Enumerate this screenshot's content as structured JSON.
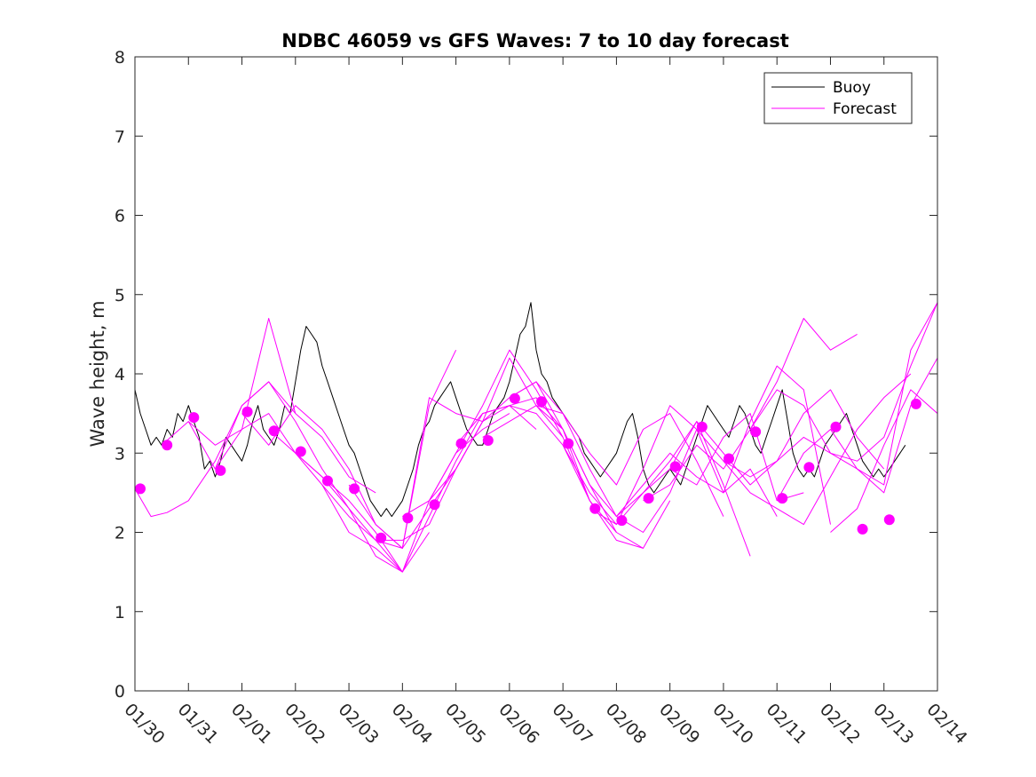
{
  "chart_data": {
    "type": "line",
    "title": "NDBC 46059 vs GFS Waves: 7 to 10 day forecast",
    "xlabel": "",
    "ylabel": "Wave height, m",
    "xlim": [
      0,
      15
    ],
    "ylim": [
      0,
      8
    ],
    "x_unit": "days since 01/30",
    "x_ticks": [
      0,
      1,
      2,
      3,
      4,
      5,
      6,
      7,
      8,
      9,
      10,
      11,
      12,
      13,
      14,
      15
    ],
    "x_tick_labels": [
      "01/30",
      "01/31",
      "02/01",
      "02/02",
      "02/03",
      "02/04",
      "02/05",
      "02/06",
      "02/07",
      "02/08",
      "02/09",
      "02/10",
      "02/11",
      "02/12",
      "02/13",
      "02/14"
    ],
    "y_ticks": [
      0,
      1,
      2,
      3,
      4,
      5,
      6,
      7,
      8
    ],
    "y_tick_labels": [
      "0",
      "1",
      "2",
      "3",
      "4",
      "5",
      "6",
      "7",
      "8"
    ],
    "legend": {
      "position": "top-right",
      "entries": [
        {
          "name": "Buoy",
          "color": "#000000"
        },
        {
          "name": "Forecast",
          "color": "#ff00ff"
        }
      ]
    },
    "series": [
      {
        "name": "Buoy",
        "color": "#000000",
        "x": [
          0,
          0.1,
          0.2,
          0.3,
          0.4,
          0.5,
          0.6,
          0.7,
          0.8,
          0.9,
          1,
          1.1,
          1.2,
          1.3,
          1.4,
          1.5,
          1.6,
          1.7,
          1.8,
          1.9,
          2,
          2.1,
          2.2,
          2.3,
          2.4,
          2.5,
          2.6,
          2.7,
          2.8,
          2.9,
          3,
          3.1,
          3.2,
          3.3,
          3.4,
          3.5,
          3.6,
          3.7,
          3.8,
          3.9,
          4,
          4.1,
          4.2,
          4.3,
          4.4,
          4.5,
          4.6,
          4.7,
          4.8,
          4.9,
          5,
          5.1,
          5.2,
          5.3,
          5.4,
          5.5,
          5.6,
          5.7,
          5.8,
          5.9,
          6,
          6.1,
          6.2,
          6.3,
          6.4,
          6.5,
          6.6,
          6.7,
          6.8,
          6.9,
          7,
          7.1,
          7.2,
          7.3,
          7.4,
          7.5,
          7.6,
          7.7,
          7.8,
          7.9,
          8,
          8.1,
          8.2,
          8.3,
          8.4,
          8.5,
          8.6,
          8.7,
          8.8,
          8.9,
          9,
          9.1,
          9.2,
          9.3,
          9.4,
          9.5,
          9.6,
          9.7,
          9.8,
          9.9,
          10,
          10.1,
          10.2,
          10.3,
          10.4,
          10.5,
          10.6,
          10.7,
          10.8,
          10.9,
          11,
          11.1,
          11.2,
          11.3,
          11.4,
          11.5,
          11.6,
          11.7,
          11.8,
          11.9,
          12,
          12.1,
          12.2,
          12.3,
          12.4,
          12.5,
          12.6,
          12.7,
          12.8,
          12.9,
          13,
          13.1,
          13.2,
          13.3,
          13.4,
          13.5,
          13.6,
          13.7,
          13.8,
          13.9,
          14,
          14.1,
          14.2,
          14.3,
          14.4
        ],
        "values": [
          3.8,
          3.5,
          3.3,
          3.1,
          3.2,
          3.1,
          3.3,
          3.2,
          3.5,
          3.4,
          3.6,
          3.4,
          3.2,
          2.8,
          2.9,
          2.7,
          2.9,
          3.2,
          3.1,
          3.0,
          2.9,
          3.1,
          3.4,
          3.6,
          3.3,
          3.2,
          3.1,
          3.3,
          3.6,
          3.5,
          3.9,
          4.3,
          4.6,
          4.5,
          4.4,
          4.1,
          3.9,
          3.7,
          3.5,
          3.3,
          3.1,
          3.0,
          2.8,
          2.6,
          2.4,
          2.3,
          2.2,
          2.3,
          2.2,
          2.3,
          2.4,
          2.6,
          2.8,
          3.1,
          3.3,
          3.4,
          3.6,
          3.7,
          3.8,
          3.9,
          3.7,
          3.5,
          3.3,
          3.2,
          3.1,
          3.1,
          3.3,
          3.5,
          3.6,
          3.7,
          3.9,
          4.2,
          4.5,
          4.6,
          4.9,
          4.3,
          4.0,
          3.9,
          3.7,
          3.6,
          3.5,
          3.4,
          3.3,
          3.2,
          3.0,
          2.9,
          2.8,
          2.7,
          2.8,
          2.9,
          3.0,
          3.2,
          3.4,
          3.5,
          3.2,
          2.8,
          2.6,
          2.5,
          2.6,
          2.7,
          2.8,
          2.7,
          2.6,
          2.8,
          3.0,
          3.2,
          3.4,
          3.6,
          3.5,
          3.4,
          3.3,
          3.2,
          3.4,
          3.6,
          3.5,
          3.3,
          3.1,
          3.0,
          3.2,
          3.4,
          3.6,
          3.8,
          3.4,
          3.0,
          2.8,
          2.7,
          2.8,
          2.7,
          2.9,
          3.1,
          3.2,
          3.3,
          3.4,
          3.5,
          3.3,
          3.1,
          2.9,
          2.8,
          2.7,
          2.8,
          2.7,
          2.8,
          2.9,
          3.0,
          3.1
        ]
      },
      {
        "name": "Forecast run 1",
        "color": "#ff00ff",
        "x": [
          0,
          0.3,
          0.6,
          1.0,
          1.5,
          2.0,
          2.5,
          3.0
        ],
        "values": [
          2.55,
          2.2,
          2.25,
          2.4,
          2.9,
          3.6,
          3.9,
          3.5
        ]
      },
      {
        "name": "Forecast run 2",
        "color": "#ff00ff",
        "x": [
          0.5,
          1.0,
          1.5,
          2.0,
          2.5,
          3.0,
          3.5,
          4.0,
          4.5
        ],
        "values": [
          3.1,
          3.4,
          3.1,
          3.3,
          4.7,
          3.5,
          3.2,
          2.7,
          2.5
        ]
      },
      {
        "name": "Forecast run 3",
        "color": "#ff00ff",
        "x": [
          1.0,
          1.5,
          2.0,
          2.5,
          3.0,
          3.5,
          4.0,
          4.5,
          5.0
        ],
        "values": [
          3.4,
          2.8,
          3.3,
          3.5,
          3.0,
          2.6,
          2.0,
          1.8,
          1.5
        ]
      },
      {
        "name": "Forecast run 4",
        "color": "#ff00ff",
        "x": [
          1.5,
          2.0,
          2.5,
          3.0,
          3.5,
          4.0,
          4.5,
          5.0,
          5.5
        ],
        "values": [
          2.8,
          3.6,
          3.9,
          3.4,
          2.8,
          2.3,
          1.7,
          1.5,
          2.0
        ]
      },
      {
        "name": "Forecast run 5",
        "color": "#ff00ff",
        "x": [
          2.0,
          2.5,
          3.0,
          3.5,
          4.0,
          4.5,
          5.0,
          5.5,
          6.0
        ],
        "values": [
          3.5,
          3.1,
          3.6,
          3.3,
          2.8,
          2.1,
          1.8,
          3.6,
          4.3
        ]
      },
      {
        "name": "Forecast run 6",
        "color": "#ff00ff",
        "x": [
          2.5,
          3.0,
          3.5,
          4.0,
          4.5,
          5.0,
          5.5,
          6.0,
          6.5
        ],
        "values": [
          3.3,
          3.0,
          2.7,
          2.3,
          1.9,
          1.8,
          3.7,
          3.5,
          3.4
        ]
      },
      {
        "name": "Forecast run 7",
        "color": "#ff00ff",
        "x": [
          3.0,
          3.5,
          4.0,
          4.5,
          5.0,
          5.5,
          6.0,
          6.5,
          7.0
        ],
        "values": [
          3.0,
          2.7,
          2.4,
          2.0,
          1.5,
          2.4,
          3.0,
          3.3,
          3.5
        ]
      },
      {
        "name": "Forecast run 8",
        "color": "#ff00ff",
        "x": [
          3.5,
          4.0,
          4.5,
          5.0,
          5.5,
          6.0,
          6.5,
          7.0,
          7.5
        ],
        "values": [
          2.6,
          2.2,
          1.9,
          1.5,
          2.2,
          2.9,
          3.5,
          3.6,
          3.3
        ]
      },
      {
        "name": "Forecast run 9",
        "color": "#ff00ff",
        "x": [
          4.0,
          4.5,
          5.0,
          5.5,
          6.0,
          6.5,
          7.0,
          7.5,
          8.0
        ],
        "values": [
          2.6,
          2.1,
          1.8,
          2.3,
          2.8,
          3.4,
          4.2,
          3.6,
          3.2
        ]
      },
      {
        "name": "Forecast run 10",
        "color": "#ff00ff",
        "x": [
          4.5,
          5.0,
          5.5,
          6.0,
          6.5,
          7.0,
          7.5,
          8.0,
          8.5
        ],
        "values": [
          1.9,
          1.9,
          2.1,
          2.8,
          3.4,
          3.6,
          3.5,
          3.1,
          2.4
        ]
      },
      {
        "name": "Forecast run 11",
        "color": "#ff00ff",
        "x": [
          5.0,
          5.5,
          6.0,
          6.5,
          7.0,
          7.5,
          8.0,
          8.5,
          9.0
        ],
        "values": [
          2.2,
          2.4,
          3.0,
          3.6,
          4.3,
          3.8,
          3.2,
          2.4,
          2.0
        ]
      },
      {
        "name": "Forecast run 12",
        "color": "#ff00ff",
        "x": [
          5.5,
          6.0,
          6.5,
          7.0,
          7.5,
          8.0,
          8.5,
          9.0,
          9.5
        ],
        "values": [
          2.4,
          2.8,
          3.4,
          3.7,
          3.9,
          3.3,
          2.6,
          2.0,
          1.8
        ]
      },
      {
        "name": "Forecast run 13",
        "color": "#ff00ff",
        "x": [
          6.0,
          6.5,
          7.0,
          7.5,
          8.0,
          8.5,
          9.0,
          9.5,
          10.0
        ],
        "values": [
          3.1,
          3.5,
          3.6,
          3.7,
          3.3,
          2.4,
          1.9,
          1.8,
          2.4
        ]
      },
      {
        "name": "Forecast run 14",
        "color": "#ff00ff",
        "x": [
          6.5,
          7.0,
          7.5,
          8.0,
          8.5,
          9.0,
          9.5,
          10.0,
          10.5
        ],
        "values": [
          3.2,
          3.4,
          3.6,
          3.5,
          2.8,
          2.2,
          2.0,
          2.5,
          3.3
        ]
      },
      {
        "name": "Forecast run 15",
        "color": "#ff00ff",
        "x": [
          7.0,
          7.5,
          8.0,
          8.5,
          9.0,
          9.5,
          10.0,
          10.5,
          11.0
        ],
        "values": [
          3.7,
          3.9,
          3.5,
          3.0,
          2.6,
          3.3,
          3.5,
          2.9,
          2.2
        ]
      },
      {
        "name": "Forecast run 16",
        "color": "#ff00ff",
        "x": [
          7.5,
          8.0,
          8.5,
          9.0,
          9.5,
          10.0,
          10.5,
          11.0,
          11.5
        ],
        "values": [
          3.6,
          3.3,
          2.6,
          2.2,
          2.5,
          2.9,
          3.4,
          2.6,
          1.7
        ]
      },
      {
        "name": "Forecast run 17",
        "color": "#ff00ff",
        "x": [
          8.0,
          8.5,
          9.0,
          9.5,
          10.0,
          10.5,
          11.0,
          11.5,
          12.0
        ],
        "values": [
          3.1,
          2.5,
          2.1,
          2.8,
          3.6,
          3.3,
          2.5,
          2.8,
          2.2
        ]
      },
      {
        "name": "Forecast run 18",
        "color": "#ff00ff",
        "x": [
          8.5,
          9.0,
          9.5,
          10.0,
          10.5,
          11.0,
          11.5,
          12.0,
          12.5
        ],
        "values": [
          2.3,
          2.1,
          2.5,
          2.8,
          2.6,
          3.2,
          3.5,
          2.4,
          2.5
        ]
      },
      {
        "name": "Forecast run 19",
        "color": "#ff00ff",
        "x": [
          9.0,
          9.5,
          10.0,
          10.5,
          11.0,
          11.5,
          12.0,
          12.5,
          13.0
        ],
        "values": [
          2.2,
          2.6,
          3.0,
          2.7,
          2.5,
          3.4,
          4.1,
          3.8,
          2.1
        ]
      },
      {
        "name": "Forecast run 20",
        "color": "#ff00ff",
        "x": [
          9.5,
          10.0,
          10.5,
          11.0,
          11.5,
          12.0,
          12.5,
          13.0,
          13.5
        ],
        "values": [
          2.4,
          2.6,
          3.1,
          2.8,
          3.3,
          3.9,
          4.7,
          4.3,
          4.5
        ]
      },
      {
        "name": "Forecast run 21",
        "color": "#ff00ff",
        "x": [
          10.0,
          10.5,
          11.0,
          11.5,
          12.0,
          12.5,
          13.0,
          13.5,
          14.0
        ],
        "values": [
          2.8,
          3.4,
          3.0,
          2.6,
          2.9,
          3.5,
          3.8,
          3.2,
          2.8
        ]
      },
      {
        "name": "Forecast run 22",
        "color": "#ff00ff",
        "x": [
          10.5,
          11.0,
          11.5,
          12.0,
          12.5,
          13.0,
          13.5,
          14.0,
          14.5
        ],
        "values": [
          3.3,
          2.9,
          2.5,
          2.3,
          2.1,
          2.7,
          3.3,
          3.7,
          4.0
        ]
      },
      {
        "name": "Forecast run 23",
        "color": "#ff00ff",
        "x": [
          11.0,
          11.5,
          12.0,
          12.5,
          13.0,
          13.5,
          14.0,
          14.5,
          15.0
        ],
        "values": [
          2.9,
          2.7,
          2.9,
          3.2,
          3.0,
          2.9,
          3.2,
          4.1,
          4.9
        ]
      },
      {
        "name": "Forecast run 24",
        "color": "#ff00ff",
        "x": [
          11.5,
          12.0,
          12.5,
          13.0,
          13.5,
          14.0,
          14.5,
          15.0
        ],
        "values": [
          3.3,
          3.8,
          3.6,
          3.0,
          2.8,
          2.5,
          3.6,
          4.2
        ]
      },
      {
        "name": "Forecast run 25",
        "color": "#ff00ff",
        "x": [
          12.0,
          12.5,
          13.0,
          13.5,
          14.0,
          14.5,
          15.0
        ],
        "values": [
          2.4,
          3.0,
          3.3,
          2.8,
          2.6,
          4.3,
          4.9
        ]
      },
      {
        "name": "Forecast run 26",
        "color": "#ff00ff",
        "x": [
          13.0,
          13.5,
          14.0,
          14.5,
          15.0
        ],
        "values": [
          2.0,
          2.3,
          3.1,
          3.8,
          3.5
        ]
      }
    ],
    "markers": {
      "name": "Forecast start points",
      "color": "#ff00ff",
      "x": [
        0.1,
        0.6,
        1.1,
        1.6,
        2.1,
        2.6,
        3.1,
        3.6,
        4.1,
        4.6,
        5.1,
        5.6,
        6.1,
        6.6,
        7.1,
        7.6,
        8.1,
        8.6,
        9.1,
        9.6,
        10.1,
        10.6,
        11.1,
        11.6,
        12.1,
        12.6,
        13.1,
        13.6,
        14.1,
        14.6
      ],
      "values": [
        2.55,
        3.1,
        3.45,
        2.78,
        3.52,
        3.28,
        3.02,
        2.65,
        2.55,
        1.93,
        2.18,
        2.35,
        3.12,
        3.16,
        3.69,
        3.65,
        3.12,
        2.3,
        2.15,
        2.43,
        2.83,
        3.33,
        2.93,
        3.27,
        2.43,
        2.82,
        3.33,
        2.04,
        2.16,
        3.62
      ]
    }
  }
}
